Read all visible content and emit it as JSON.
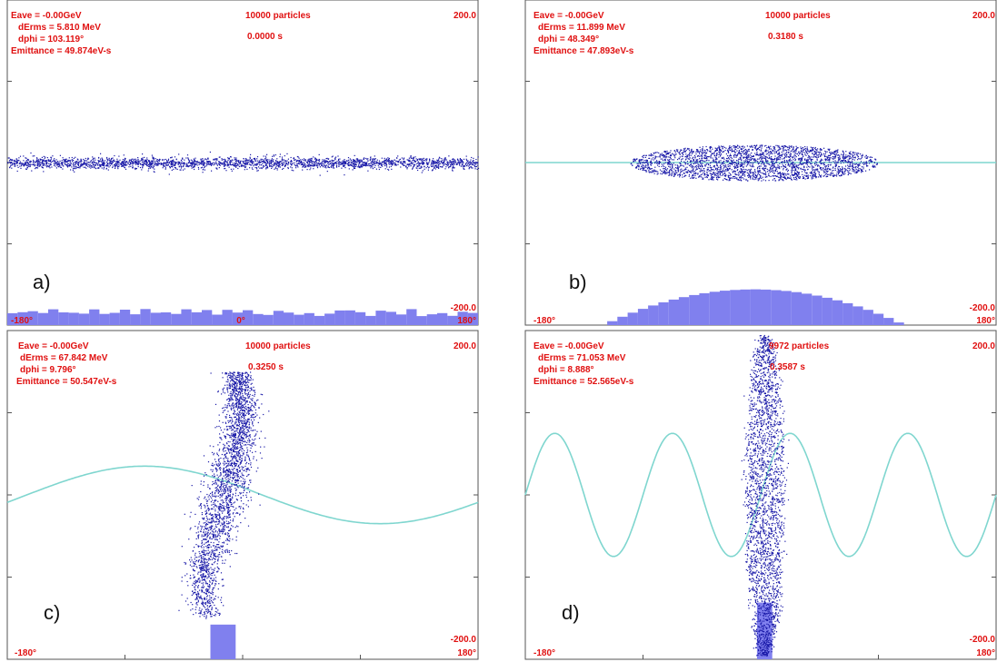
{
  "chart_data": [
    {
      "type": "scatter",
      "panel_label": "a)",
      "stats": {
        "eave": "Eave =   -0.00GeV",
        "derms": "dErms =  5.810 MeV",
        "dphi": "dphi = 103.119°",
        "emittance": "Emittance = 49.874eV-s"
      },
      "particles_text": "10000 particles",
      "time_text": "0.0000 s",
      "y_max_label": "200.0",
      "y_min_label": "-200.0",
      "x_min_label": "-180°",
      "x_mid_label": "0°",
      "x_max_label": "180°",
      "xlim": [
        -180,
        180
      ],
      "ylim": [
        -200,
        200
      ],
      "rf_wave": null,
      "distribution": {
        "shape": "band",
        "phase_center": 0,
        "energy_center": 0,
        "phase_halfwidth": 180,
        "energy_halfwidth": 8
      },
      "histogram": {
        "bins": 46,
        "profile": "flat",
        "peak_fraction": 0.05
      }
    },
    {
      "type": "scatter",
      "panel_label": "b)",
      "stats": {
        "eave": "Eave =   -0.00GeV",
        "derms": "dErms = 11.899 MeV",
        "dphi": "dphi = 48.349°",
        "emittance": "Emittance = 47.893eV-s"
      },
      "particles_text": "10000 particles",
      "time_text": "0.3180 s",
      "y_max_label": "200.0",
      "y_min_label": "-200.0",
      "x_min_label": "-180°",
      "x_mid_label": "",
      "x_max_label": "180°",
      "xlim": [
        -180,
        180
      ],
      "ylim": [
        -200,
        200
      ],
      "rf_wave": {
        "type": "flat",
        "amplitude": 0,
        "periods": 0
      },
      "distribution": {
        "shape": "ellipse",
        "phase_center": -5,
        "energy_center": 0,
        "phase_halfwidth": 95,
        "energy_halfwidth": 22
      },
      "histogram": {
        "bins": 46,
        "profile": "dome",
        "center": -5,
        "halfwidth": 115,
        "peak_fraction": 0.11
      }
    },
    {
      "type": "scatter",
      "panel_label": "c)",
      "stats": {
        "eave": "Eave =   -0.00GeV",
        "derms": "dErms = 67.842 MeV",
        "dphi": "dphi = 9.796°",
        "emittance": "Emittance = 50.547eV-s"
      },
      "particles_text": "10000 particles",
      "time_text": "0.3250 s",
      "y_max_label": "200.0",
      "y_min_label": "-200.0",
      "x_min_label": "-180°",
      "x_mid_label": "",
      "x_max_label": "180°",
      "xlim": [
        -180,
        180
      ],
      "ylim": [
        -200,
        200
      ],
      "rf_wave": {
        "type": "sine",
        "amplitude": 35,
        "periods": 1,
        "phase_shift": 165,
        "offset": 0
      },
      "distribution": {
        "shape": "filament",
        "phase_center": -14,
        "energy_center": 0,
        "phase_halfwidth": 22,
        "energy_halfwidth": 150
      },
      "histogram": {
        "bins": 8,
        "profile": "peak",
        "center": -15,
        "halfwidth": 22,
        "peak_fraction": 0.16
      }
    },
    {
      "type": "scatter",
      "panel_label": "d)",
      "stats": {
        "eave": "Eave =   -0.00GeV",
        "derms": "dErms = 71.053 MeV",
        "dphi": "dphi = 8.888°",
        "emittance": "Emittance = 52.565eV-s"
      },
      "particles_text": "9972 particles",
      "time_text": "0.3587 s",
      "y_max_label": "200.0",
      "y_min_label": "-200.0",
      "x_min_label": "-180°",
      "x_mid_label": "",
      "x_max_label": "180°",
      "xlim": [
        -180,
        180
      ],
      "ylim": [
        -200,
        200
      ],
      "rf_wave": {
        "type": "sine",
        "amplitude": 75,
        "periods": 4,
        "phase_shift": 0,
        "offset": 0
      },
      "distribution": {
        "shape": "bucket",
        "phase_center": 3,
        "energy_center": 0,
        "phase_halfwidth": 14,
        "energy_halfwidth": 195
      },
      "histogram": {
        "bins": 9,
        "profile": "peak",
        "center": 3,
        "halfwidth": 22,
        "peak_fraction": 0.2
      }
    }
  ]
}
